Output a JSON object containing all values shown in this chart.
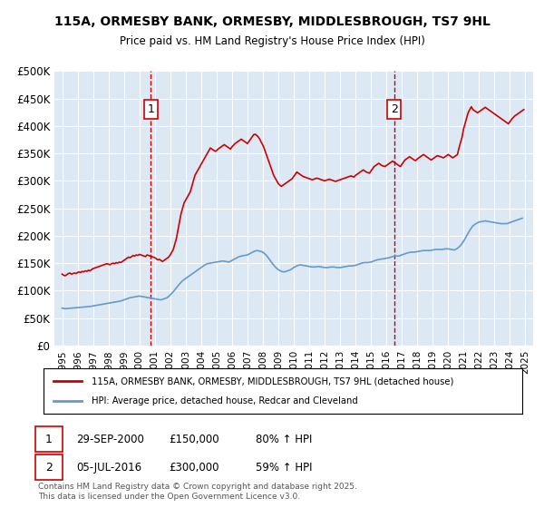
{
  "title": "115A, ORMESBY BANK, ORMESBY, MIDDLESBROUGH, TS7 9HL",
  "subtitle": "Price paid vs. HM Land Registry's House Price Index (HPI)",
  "legend_line1": "115A, ORMESBY BANK, ORMESBY, MIDDLESBROUGH, TS7 9HL (detached house)",
  "legend_line2": "HPI: Average price, detached house, Redcar and Cleveland",
  "marker1_date": "29-SEP-2000",
  "marker1_price": "£150,000",
  "marker1_hpi": "80% ↑ HPI",
  "marker2_date": "05-JUL-2016",
  "marker2_price": "£300,000",
  "marker2_hpi": "59% ↑ HPI",
  "footer": "Contains HM Land Registry data © Crown copyright and database right 2025.\nThis data is licensed under the Open Government Licence v3.0.",
  "bg_color": "#dce9f5",
  "plot_bg": "#dce9f5",
  "red_color": "#cc0000",
  "blue_color": "#6699cc",
  "marker_vline_color": "#cc0000",
  "ylim": [
    0,
    500000
  ],
  "yticks": [
    0,
    50000,
    100000,
    150000,
    200000,
    250000,
    300000,
    350000,
    400000,
    450000,
    500000
  ],
  "ytick_labels": [
    "£0",
    "£50K",
    "£100K",
    "£150K",
    "£200K",
    "£250K",
    "£300K",
    "£350K",
    "£400K",
    "£450K",
    "£500K"
  ],
  "xlim_start": 1994.5,
  "xlim_end": 2025.5,
  "marker1_x": 2000.75,
  "marker2_x": 2016.5,
  "marker1_y": 150000,
  "marker2_y": 300000,
  "red_hpi_data": {
    "years": [
      1995.0,
      1995.1,
      1995.2,
      1995.3,
      1995.4,
      1995.5,
      1995.6,
      1995.7,
      1995.8,
      1995.9,
      1996.0,
      1996.1,
      1996.2,
      1996.3,
      1996.4,
      1996.5,
      1996.6,
      1996.7,
      1996.8,
      1996.9,
      1997.0,
      1997.1,
      1997.2,
      1997.3,
      1997.4,
      1997.5,
      1997.6,
      1997.7,
      1997.8,
      1997.9,
      1998.0,
      1998.1,
      1998.2,
      1998.3,
      1998.4,
      1998.5,
      1998.6,
      1998.7,
      1998.8,
      1998.9,
      1999.0,
      1999.1,
      1999.2,
      1999.3,
      1999.4,
      1999.5,
      1999.6,
      1999.7,
      1999.8,
      1999.9,
      2000.0,
      2000.1,
      2000.2,
      2000.3,
      2000.4,
      2000.5,
      2000.6,
      2000.7,
      2000.8,
      2001.0,
      2001.1,
      2001.2,
      2001.3,
      2001.4,
      2001.5,
      2001.6,
      2001.7,
      2001.8,
      2001.9,
      2002.0,
      2002.1,
      2002.2,
      2002.3,
      2002.4,
      2002.5,
      2002.6,
      2002.7,
      2002.8,
      2002.9,
      2003.0,
      2003.1,
      2003.2,
      2003.3,
      2003.4,
      2003.5,
      2003.6,
      2003.7,
      2003.8,
      2003.9,
      2004.0,
      2004.1,
      2004.2,
      2004.3,
      2004.4,
      2004.5,
      2004.6,
      2004.7,
      2004.8,
      2004.9,
      2005.0,
      2005.1,
      2005.2,
      2005.3,
      2005.4,
      2005.5,
      2005.6,
      2005.7,
      2005.8,
      2005.9,
      2006.0,
      2006.1,
      2006.2,
      2006.3,
      2006.4,
      2006.5,
      2006.6,
      2006.7,
      2006.8,
      2006.9,
      2007.0,
      2007.1,
      2007.2,
      2007.3,
      2007.4,
      2007.5,
      2007.6,
      2007.7,
      2007.8,
      2007.9,
      2008.0,
      2008.1,
      2008.2,
      2008.3,
      2008.4,
      2008.5,
      2008.6,
      2008.7,
      2008.8,
      2008.9,
      2009.0,
      2009.1,
      2009.2,
      2009.3,
      2009.4,
      2009.5,
      2009.6,
      2009.7,
      2009.8,
      2009.9,
      2010.0,
      2010.1,
      2010.2,
      2010.3,
      2010.4,
      2010.5,
      2010.6,
      2010.7,
      2010.8,
      2010.9,
      2011.0,
      2011.1,
      2011.2,
      2011.3,
      2011.4,
      2011.5,
      2011.6,
      2011.7,
      2011.8,
      2011.9,
      2012.0,
      2012.1,
      2012.2,
      2012.3,
      2012.4,
      2012.5,
      2012.6,
      2012.7,
      2012.8,
      2012.9,
      2013.0,
      2013.1,
      2013.2,
      2013.3,
      2013.4,
      2013.5,
      2013.6,
      2013.7,
      2013.8,
      2013.9,
      2014.0,
      2014.1,
      2014.2,
      2014.3,
      2014.4,
      2014.5,
      2014.6,
      2014.7,
      2014.8,
      2014.9,
      2015.0,
      2015.1,
      2015.2,
      2015.3,
      2015.4,
      2015.5,
      2015.6,
      2015.7,
      2015.8,
      2015.9,
      2016.0,
      2016.1,
      2016.2,
      2016.3,
      2016.4,
      2016.6,
      2016.7,
      2016.8,
      2016.9,
      2017.0,
      2017.1,
      2017.2,
      2017.3,
      2017.4,
      2017.5,
      2017.6,
      2017.7,
      2017.8,
      2017.9,
      2018.0,
      2018.1,
      2018.2,
      2018.3,
      2018.4,
      2018.5,
      2018.6,
      2018.7,
      2018.8,
      2018.9,
      2019.0,
      2019.1,
      2019.2,
      2019.3,
      2019.4,
      2019.5,
      2019.6,
      2019.7,
      2019.8,
      2019.9,
      2020.0,
      2020.1,
      2020.2,
      2020.3,
      2020.4,
      2020.5,
      2020.6,
      2020.7,
      2020.8,
      2020.9,
      2021.0,
      2021.1,
      2021.2,
      2021.3,
      2021.4,
      2021.5,
      2021.6,
      2021.7,
      2021.8,
      2021.9,
      2022.0,
      2022.1,
      2022.2,
      2022.3,
      2022.4,
      2022.5,
      2022.6,
      2022.7,
      2022.8,
      2022.9,
      2023.0,
      2023.1,
      2023.2,
      2023.3,
      2023.4,
      2023.5,
      2023.6,
      2023.7,
      2023.8,
      2023.9,
      2024.0,
      2024.1,
      2024.2,
      2024.3,
      2024.4,
      2024.5,
      2024.6,
      2024.7,
      2024.8,
      2024.9
    ],
    "values": [
      130000,
      128000,
      127000,
      129000,
      131000,
      132000,
      130000,
      131000,
      132000,
      131000,
      133000,
      134000,
      133000,
      135000,
      134000,
      136000,
      135000,
      137000,
      136000,
      138000,
      140000,
      141000,
      142000,
      143000,
      144000,
      145000,
      146000,
      147000,
      148000,
      149000,
      148000,
      147000,
      149000,
      150000,
      149000,
      151000,
      150000,
      152000,
      151000,
      153000,
      155000,
      157000,
      159000,
      161000,
      160000,
      162000,
      164000,
      163000,
      165000,
      164000,
      166000,
      165000,
      164000,
      163000,
      162000,
      165000,
      164000,
      163000,
      162000,
      160000,
      158000,
      156000,
      157000,
      155000,
      153000,
      155000,
      157000,
      159000,
      161000,
      165000,
      170000,
      175000,
      185000,
      195000,
      210000,
      225000,
      240000,
      250000,
      260000,
      265000,
      270000,
      275000,
      280000,
      290000,
      300000,
      310000,
      315000,
      320000,
      325000,
      330000,
      335000,
      340000,
      345000,
      350000,
      355000,
      360000,
      358000,
      356000,
      354000,
      355000,
      358000,
      360000,
      362000,
      364000,
      366000,
      364000,
      362000,
      360000,
      358000,
      362000,
      365000,
      368000,
      370000,
      372000,
      374000,
      376000,
      374000,
      372000,
      370000,
      368000,
      372000,
      376000,
      380000,
      384000,
      385000,
      383000,
      380000,
      376000,
      370000,
      365000,
      358000,
      350000,
      342000,
      334000,
      326000,
      318000,
      310000,
      305000,
      300000,
      295000,
      292000,
      290000,
      292000,
      294000,
      296000,
      298000,
      300000,
      302000,
      304000,
      308000,
      312000,
      316000,
      314000,
      312000,
      310000,
      308000,
      307000,
      306000,
      305000,
      304000,
      303000,
      302000,
      303000,
      304000,
      305000,
      304000,
      303000,
      302000,
      301000,
      300000,
      301000,
      302000,
      303000,
      302000,
      301000,
      300000,
      299000,
      300000,
      301000,
      302000,
      303000,
      304000,
      305000,
      306000,
      307000,
      308000,
      309000,
      308000,
      307000,
      310000,
      312000,
      314000,
      316000,
      318000,
      320000,
      318000,
      316000,
      315000,
      314000,
      318000,
      322000,
      326000,
      328000,
      330000,
      332000,
      330000,
      328000,
      327000,
      326000,
      328000,
      330000,
      332000,
      334000,
      336000,
      332000,
      330000,
      328000,
      326000,
      330000,
      334000,
      338000,
      340000,
      342000,
      344000,
      342000,
      340000,
      338000,
      337000,
      340000,
      342000,
      344000,
      346000,
      348000,
      346000,
      344000,
      342000,
      340000,
      338000,
      340000,
      342000,
      344000,
      346000,
      345000,
      344000,
      343000,
      342000,
      344000,
      346000,
      348000,
      346000,
      344000,
      342000,
      344000,
      346000,
      348000,
      360000,
      370000,
      380000,
      395000,
      405000,
      415000,
      425000,
      430000,
      435000,
      430000,
      428000,
      426000,
      424000,
      426000,
      428000,
      430000,
      432000,
      434000,
      432000,
      430000,
      428000,
      426000,
      424000,
      422000,
      420000,
      418000,
      416000,
      414000,
      412000,
      410000,
      408000,
      406000,
      404000,
      408000,
      412000,
      415000,
      418000,
      420000,
      422000,
      424000,
      426000,
      428000,
      430000
    ]
  },
  "blue_hpi_data": {
    "years": [
      1995.0,
      1995.2,
      1995.4,
      1995.6,
      1995.8,
      1996.0,
      1996.2,
      1996.4,
      1996.6,
      1996.8,
      1997.0,
      1997.2,
      1997.4,
      1997.6,
      1997.8,
      1998.0,
      1998.2,
      1998.4,
      1998.6,
      1998.8,
      1999.0,
      1999.2,
      1999.4,
      1999.6,
      1999.8,
      2000.0,
      2000.2,
      2000.4,
      2000.6,
      2000.8,
      2001.0,
      2001.2,
      2001.4,
      2001.6,
      2001.8,
      2002.0,
      2002.2,
      2002.4,
      2002.6,
      2002.8,
      2003.0,
      2003.2,
      2003.4,
      2003.6,
      2003.8,
      2004.0,
      2004.2,
      2004.4,
      2004.6,
      2004.8,
      2005.0,
      2005.2,
      2005.4,
      2005.6,
      2005.8,
      2006.0,
      2006.2,
      2006.4,
      2006.6,
      2006.8,
      2007.0,
      2007.2,
      2007.4,
      2007.6,
      2007.8,
      2008.0,
      2008.2,
      2008.4,
      2008.6,
      2008.8,
      2009.0,
      2009.2,
      2009.4,
      2009.6,
      2009.8,
      2010.0,
      2010.2,
      2010.4,
      2010.6,
      2010.8,
      2011.0,
      2011.2,
      2011.4,
      2011.6,
      2011.8,
      2012.0,
      2012.2,
      2012.4,
      2012.6,
      2012.8,
      2013.0,
      2013.2,
      2013.4,
      2013.6,
      2013.8,
      2014.0,
      2014.2,
      2014.4,
      2014.6,
      2014.8,
      2015.0,
      2015.2,
      2015.4,
      2015.6,
      2015.8,
      2016.0,
      2016.2,
      2016.4,
      2016.6,
      2016.8,
      2017.0,
      2017.2,
      2017.4,
      2017.6,
      2017.8,
      2018.0,
      2018.2,
      2018.4,
      2018.6,
      2018.8,
      2019.0,
      2019.2,
      2019.4,
      2019.6,
      2019.8,
      2020.0,
      2020.2,
      2020.4,
      2020.6,
      2020.8,
      2021.0,
      2021.2,
      2021.4,
      2021.6,
      2021.8,
      2022.0,
      2022.2,
      2022.4,
      2022.6,
      2022.8,
      2023.0,
      2023.2,
      2023.4,
      2023.6,
      2023.8,
      2024.0,
      2024.2,
      2024.4,
      2024.6,
      2024.8
    ],
    "values": [
      68000,
      67000,
      67500,
      68000,
      68500,
      69000,
      69500,
      70000,
      70500,
      71000,
      72000,
      73000,
      74000,
      75000,
      76000,
      77000,
      78000,
      79000,
      80000,
      81000,
      83000,
      85000,
      87000,
      88000,
      89000,
      90000,
      89000,
      88000,
      87000,
      86000,
      85000,
      84000,
      83000,
      85000,
      87000,
      92000,
      98000,
      105000,
      112000,
      118000,
      122000,
      126000,
      130000,
      134000,
      138000,
      142000,
      146000,
      149000,
      150000,
      151000,
      152000,
      153000,
      154000,
      153000,
      152000,
      155000,
      158000,
      161000,
      163000,
      164000,
      165000,
      168000,
      171000,
      173000,
      172000,
      170000,
      165000,
      158000,
      150000,
      143000,
      138000,
      135000,
      134000,
      136000,
      138000,
      142000,
      145000,
      147000,
      146000,
      145000,
      144000,
      143000,
      143000,
      144000,
      143000,
      142000,
      142000,
      143000,
      143000,
      142000,
      142000,
      143000,
      144000,
      145000,
      145000,
      146000,
      148000,
      150000,
      151000,
      151000,
      152000,
      154000,
      156000,
      157000,
      158000,
      159000,
      160000,
      162000,
      163000,
      163000,
      165000,
      167000,
      169000,
      170000,
      170000,
      171000,
      172000,
      173000,
      173000,
      173000,
      174000,
      175000,
      175000,
      175000,
      176000,
      176000,
      175000,
      174000,
      177000,
      182000,
      190000,
      200000,
      210000,
      218000,
      222000,
      225000,
      226000,
      227000,
      226000,
      225000,
      224000,
      223000,
      222000,
      222000,
      222000,
      224000,
      226000,
      228000,
      230000,
      232000
    ]
  }
}
